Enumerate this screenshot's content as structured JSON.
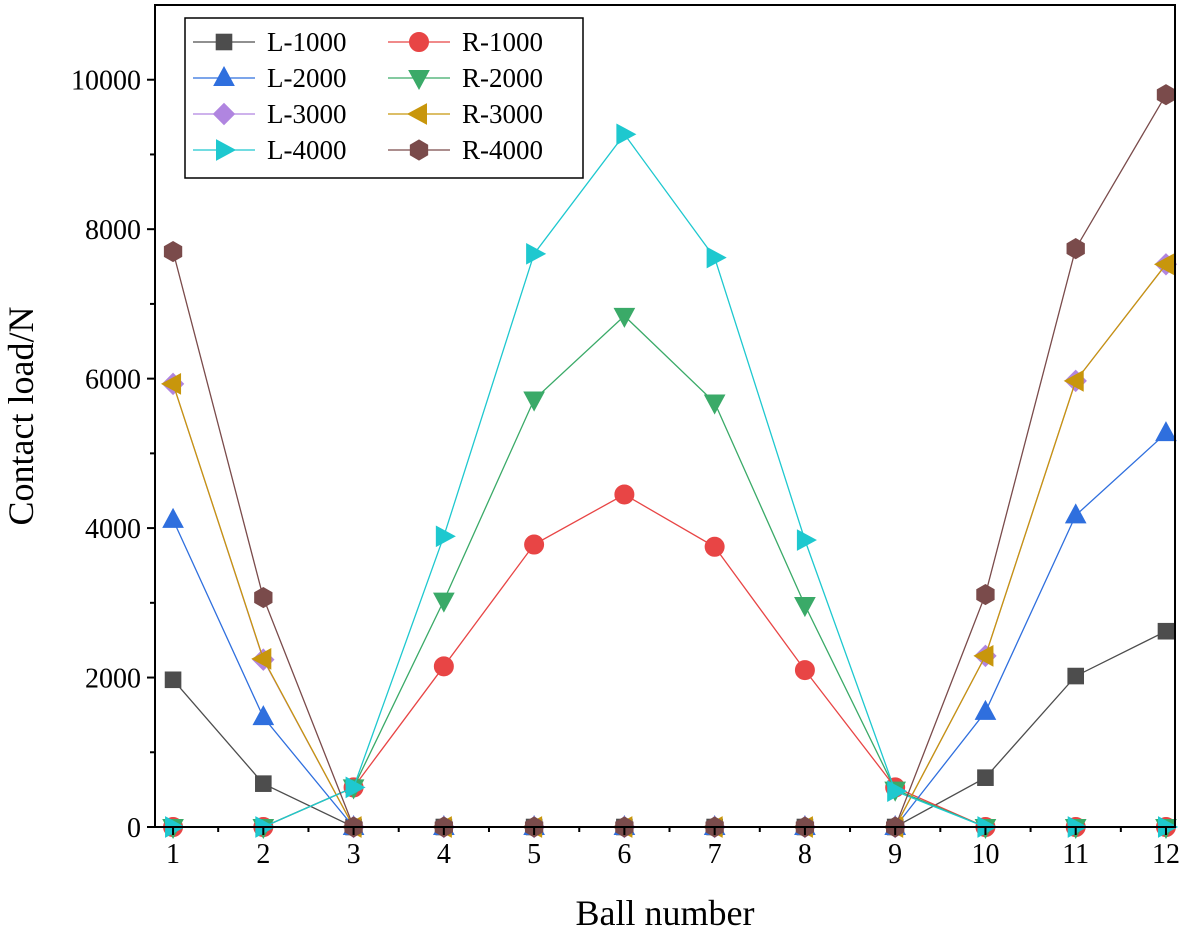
{
  "chart_data": {
    "type": "line",
    "xlabel": "Ball number",
    "ylabel": "Contact load/N",
    "x": [
      1,
      2,
      3,
      4,
      5,
      6,
      7,
      8,
      9,
      10,
      11,
      12
    ],
    "xticks": [
      "1",
      "2",
      "3",
      "4",
      "5",
      "6",
      "7",
      "8",
      "9",
      "10",
      "11",
      "12"
    ],
    "xlim": [
      0.8,
      12.1
    ],
    "ylim": [
      0,
      11000
    ],
    "yticks": [
      "0",
      "2000",
      "4000",
      "6000",
      "8000",
      "10000"
    ],
    "grid": false,
    "legend": "top-left",
    "series": [
      {
        "name": "L-1000",
        "color": "#4d4d4d",
        "marker": "square",
        "values": [
          1970,
          580,
          0,
          0,
          0,
          0,
          0,
          0,
          0,
          660,
          2020,
          2620
        ]
      },
      {
        "name": "R-1000",
        "color": "#e84545",
        "marker": "circle",
        "values": [
          0,
          0,
          530,
          2150,
          3780,
          4450,
          3750,
          2100,
          530,
          0,
          0,
          0
        ]
      },
      {
        "name": "L-2000",
        "color": "#2f6fde",
        "marker": "triangle-up",
        "values": [
          4110,
          1470,
          0,
          0,
          0,
          0,
          0,
          0,
          0,
          1540,
          4170,
          5270
        ]
      },
      {
        "name": "R-2000",
        "color": "#3aaa68",
        "marker": "triangle-down",
        "values": [
          0,
          0,
          530,
          3030,
          5720,
          6840,
          5680,
          2970,
          500,
          0,
          0,
          0
        ]
      },
      {
        "name": "L-3000",
        "color": "#b085e0",
        "marker": "diamond",
        "values": [
          5930,
          2240,
          0,
          0,
          0,
          0,
          0,
          0,
          0,
          2290,
          5970,
          7530
        ]
      },
      {
        "name": "R-3000",
        "color": "#c8960c",
        "marker": "triangle-left",
        "values": [
          5930,
          2250,
          0,
          0,
          0,
          0,
          0,
          0,
          0,
          2290,
          5970,
          7530
        ]
      },
      {
        "name": "L-4000",
        "color": "#1ec8cf",
        "marker": "triangle-right",
        "values": [
          0,
          0,
          530,
          3890,
          7670,
          9270,
          7620,
          3840,
          480,
          0,
          0,
          0
        ]
      },
      {
        "name": "R-4000",
        "color": "#7a4b4b",
        "marker": "hexagon",
        "values": [
          7700,
          3070,
          0,
          0,
          0,
          0,
          0,
          0,
          0,
          3110,
          7740,
          9800
        ]
      }
    ]
  }
}
